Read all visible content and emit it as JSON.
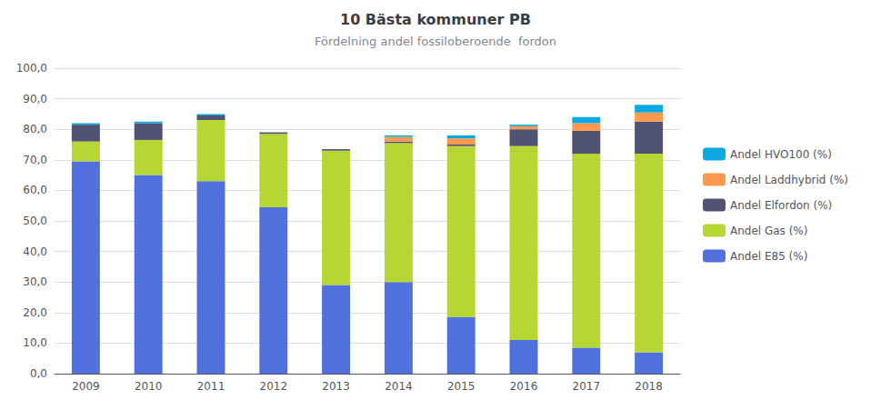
{
  "chart_data": {
    "type": "bar",
    "title": "10 Bästa kommuner PB",
    "subtitle": "Fördelning andel fossiloberoende  fordon",
    "categories": [
      "2009",
      "2010",
      "2011",
      "2012",
      "2013",
      "2014",
      "2015",
      "2016",
      "2017",
      "2018"
    ],
    "series": [
      {
        "name": "Andel E85 (%)",
        "values": [
          69.5,
          65.0,
          63.0,
          54.5,
          29.0,
          30.0,
          18.5,
          11.0,
          8.5,
          7.0
        ]
      },
      {
        "name": "Andel Gas (%)",
        "values": [
          6.5,
          11.5,
          20.0,
          24.0,
          44.0,
          45.5,
          56.0,
          63.5,
          63.5,
          65.0
        ]
      },
      {
        "name": "Andel Elfordon (%)",
        "values": [
          5.5,
          5.5,
          1.5,
          0.5,
          0.5,
          0.5,
          0.5,
          5.5,
          7.5,
          10.5
        ]
      },
      {
        "name": "Andel Laddhybrid (%)",
        "values": [
          0.0,
          0.0,
          0.0,
          0.0,
          0.0,
          1.5,
          2.0,
          1.0,
          2.5,
          3.0
        ]
      },
      {
        "name": "Andel HVO100 (%)",
        "values": [
          0.5,
          0.5,
          0.5,
          0.0,
          0.0,
          0.5,
          1.0,
          0.5,
          2.0,
          2.5
        ]
      }
    ],
    "stacked": true,
    "ylim": [
      0,
      100
    ],
    "yticks": [
      {
        "value": 0,
        "label": "0,0"
      },
      {
        "value": 10,
        "label": "10,0"
      },
      {
        "value": 20,
        "label": "20,0"
      },
      {
        "value": 30,
        "label": "30,0"
      },
      {
        "value": 40,
        "label": "40,0"
      },
      {
        "value": 50,
        "label": "50,0"
      },
      {
        "value": 60,
        "label": "60,0"
      },
      {
        "value": 70,
        "label": "70,0"
      },
      {
        "value": 80,
        "label": "80,0"
      },
      {
        "value": 90,
        "label": "90,0"
      },
      {
        "value": 100,
        "label": "100,0"
      }
    ],
    "grid": true,
    "legend": "right"
  }
}
